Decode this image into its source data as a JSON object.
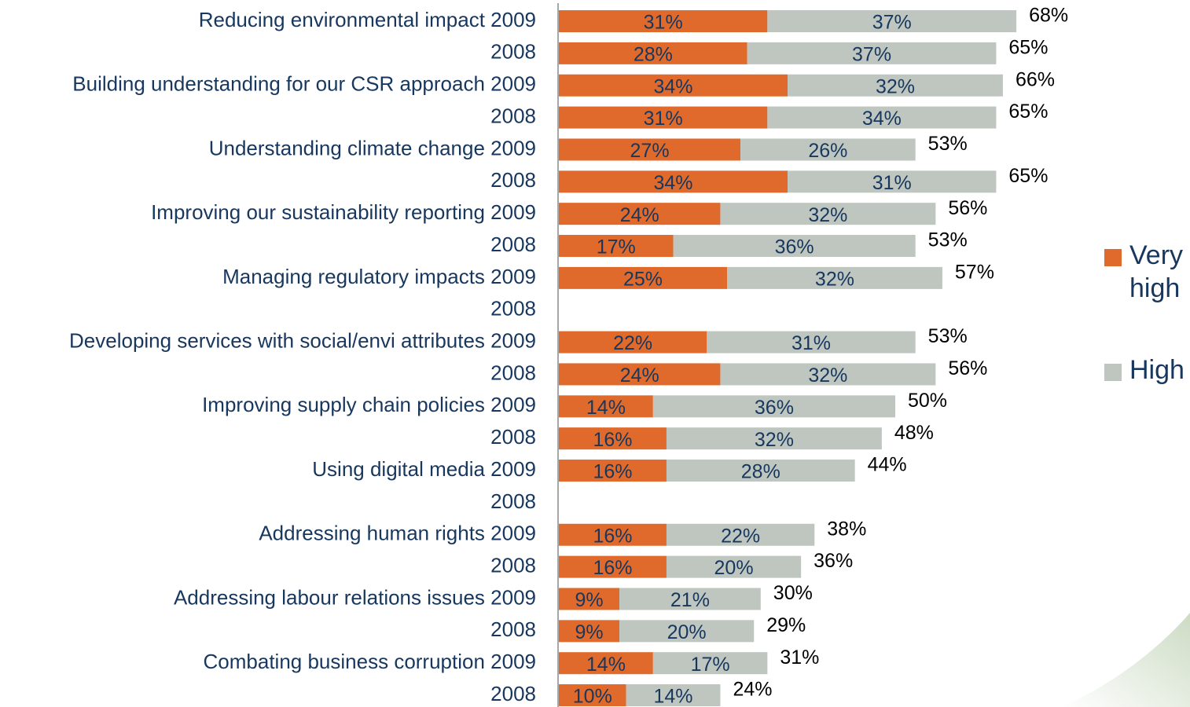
{
  "chart_data": {
    "type": "stacked-bar-horizontal",
    "categories": [
      "Reducing environmental impact 2009",
      "2008",
      "Building understanding for our CSR approach 2009",
      "2008",
      "Understanding climate change 2009",
      "2008",
      "Improving our sustainability reporting 2009",
      "2008",
      "Managing regulatory impacts 2009",
      "2008",
      "Developing services with social/envi attributes 2009",
      "2008",
      "Improving supply chain policies 2009",
      "2008",
      "Using digital media 2009",
      "2008",
      "Addressing human rights 2009",
      "2008",
      "Addressing labour relations issues 2009",
      "2008",
      "Combating business corruption 2009",
      "2008"
    ],
    "series": [
      {
        "name": "Very high",
        "color": "#e06a2b",
        "values": [
          31,
          28,
          34,
          31,
          27,
          34,
          24,
          17,
          25,
          null,
          22,
          24,
          14,
          16,
          16,
          null,
          16,
          16,
          9,
          9,
          14,
          10
        ],
        "value_labels": [
          "31%",
          "28%",
          "34%",
          "31%",
          "27%",
          "34%",
          "24%",
          "17%",
          "25%",
          null,
          "22%",
          "24%",
          "14%",
          "16%",
          "16%",
          null,
          "16%",
          "16%",
          "9%",
          "9%",
          "14%",
          "10%"
        ]
      },
      {
        "name": "High",
        "color": "#bec6bf",
        "values": [
          37,
          37,
          32,
          34,
          26,
          31,
          32,
          36,
          32,
          null,
          31,
          32,
          36,
          32,
          28,
          null,
          22,
          20,
          21,
          20,
          17,
          14
        ],
        "value_labels": [
          "37%",
          "37%",
          "32%",
          "34%",
          "26%",
          "31%",
          "32%",
          "36%",
          "32%",
          null,
          "31%",
          "32%",
          "36%",
          "32%",
          "28%",
          null,
          "22%",
          "20%",
          "21%",
          "20%",
          "17%",
          "14%"
        ]
      }
    ],
    "totals": {
      "values": [
        68,
        65,
        66,
        65,
        53,
        65,
        56,
        53,
        57,
        null,
        53,
        56,
        50,
        48,
        44,
        null,
        38,
        36,
        30,
        29,
        31,
        24
      ],
      "value_labels": [
        "68%",
        "65%",
        "66%",
        "65%",
        "53%",
        "65%",
        "56%",
        "53%",
        "57%",
        null,
        "53%",
        "56%",
        "50%",
        "48%",
        "44%",
        null,
        "38%",
        "36%",
        "30%",
        "29%",
        "31%",
        "24%"
      ]
    },
    "xlim": [
      0,
      80
    ],
    "legend": "right"
  }
}
